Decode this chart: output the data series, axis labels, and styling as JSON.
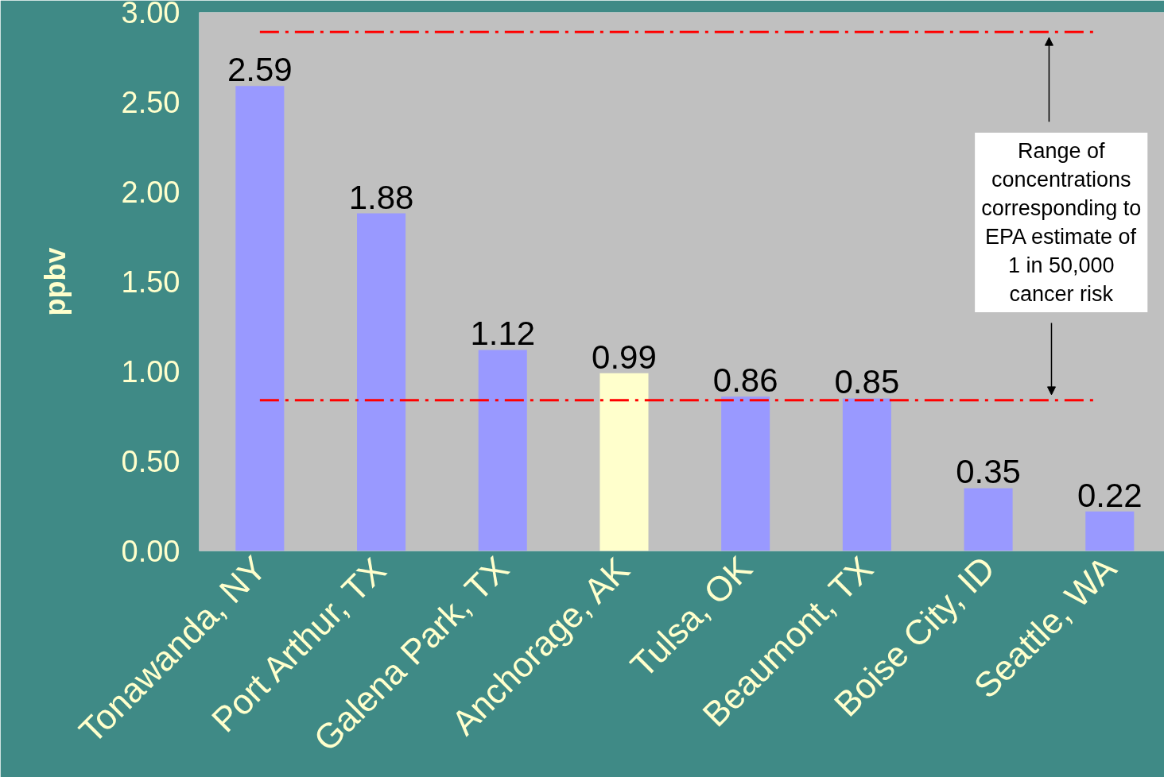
{
  "chart_data": {
    "type": "bar",
    "ylabel": "ppbv",
    "categories": [
      "Tonawanda, NY",
      "Port Arthur, TX",
      "Galena Park, TX",
      "Anchorage, AK",
      "Tulsa, OK",
      "Beaumont, TX",
      "Boise City, ID",
      "Seattle, WA"
    ],
    "values": [
      2.59,
      1.88,
      1.12,
      0.99,
      0.86,
      0.85,
      0.35,
      0.22
    ],
    "colors": [
      "#9999ff",
      "#9999ff",
      "#9999ff",
      "#ffffcc",
      "#9999ff",
      "#9999ff",
      "#9999ff",
      "#9999ff"
    ],
    "data_labels": true,
    "ylim": [
      0,
      3
    ],
    "yticks": [
      {
        "value": 0,
        "label": "0.00"
      },
      {
        "value": 0.5,
        "label": "0.50"
      },
      {
        "value": 1,
        "label": "1.00"
      },
      {
        "value": 1.5,
        "label": "1.50"
      },
      {
        "value": 2,
        "label": "2.00"
      },
      {
        "value": 2.5,
        "label": "2.50"
      },
      {
        "value": 3,
        "label": "3.00"
      }
    ],
    "ref_lines": [
      {
        "axis": "y",
        "value": 2.89,
        "color": "#ff0000",
        "line_style": "dashdot"
      },
      {
        "axis": "y",
        "value": 0.84,
        "color": "#ff0000",
        "line_style": "dashdot"
      }
    ],
    "annotations": [
      "Range of\nconcentrations\ncorresponding to\nEPA estimate of\n1 in 50,000\ncancer risk"
    ],
    "grid": false
  }
}
